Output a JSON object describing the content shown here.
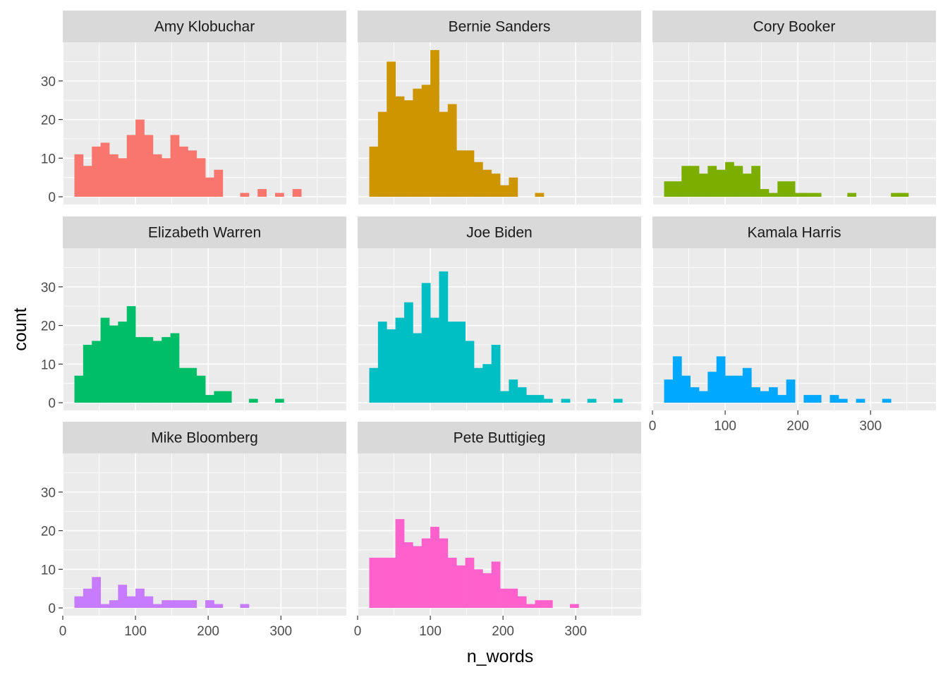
{
  "chart_data": {
    "type": "bar",
    "xlabel": "n_words",
    "ylabel": "count",
    "xlim": [
      0,
      390
    ],
    "ylim": [
      -2,
      40
    ],
    "x_ticks": [
      0,
      100,
      200,
      300
    ],
    "y_ticks": [
      0,
      10,
      20,
      30
    ],
    "bin_start": 16,
    "bin_width": 12,
    "grid": true,
    "facets": [
      {
        "name": "Amy Klobuchar",
        "color": "#F8766D",
        "values": [
          11,
          8,
          13,
          14,
          11,
          10,
          16,
          20,
          16,
          11,
          10,
          16,
          13,
          12,
          10,
          5,
          7,
          0,
          0,
          1,
          0,
          2,
          0,
          1,
          0,
          2,
          0,
          0,
          0,
          0,
          0,
          0
        ]
      },
      {
        "name": "Bernie Sanders",
        "color": "#CD9600",
        "values": [
          13,
          22,
          35,
          26,
          25,
          28,
          29,
          38,
          22,
          24,
          12,
          12,
          9,
          7,
          6,
          3,
          5,
          0,
          0,
          1,
          0,
          0,
          0,
          0,
          0,
          0,
          0,
          0,
          0,
          0,
          0,
          0
        ]
      },
      {
        "name": "Cory Booker",
        "color": "#7CAE00",
        "values": [
          4,
          4,
          8,
          8,
          6,
          8,
          7,
          9,
          8,
          6,
          8,
          2,
          1,
          4,
          4,
          1,
          1,
          1,
          0,
          0,
          0,
          1,
          0,
          0,
          0,
          0,
          1,
          1,
          0,
          0,
          0,
          0
        ]
      },
      {
        "name": "Elizabeth Warren",
        "color": "#00BE67",
        "values": [
          7,
          15,
          16,
          22,
          20,
          21,
          25,
          17,
          17,
          16,
          17,
          18,
          9,
          9,
          7,
          2,
          3,
          3,
          0,
          0,
          1,
          0,
          0,
          1,
          0,
          0,
          0,
          0,
          0,
          0,
          0,
          0
        ]
      },
      {
        "name": "Joe Biden",
        "color": "#00BFC4",
        "values": [
          9,
          21,
          19,
          22,
          26,
          18,
          31,
          22,
          34,
          21,
          21,
          16,
          9,
          10,
          15,
          3,
          6,
          4,
          2,
          2,
          1,
          0,
          1,
          0,
          0,
          1,
          0,
          0,
          1,
          0,
          0,
          0
        ]
      },
      {
        "name": "Kamala Harris",
        "color": "#00A9FF",
        "values": [
          6,
          12,
          7,
          4,
          3,
          8,
          12,
          7,
          7,
          9,
          4,
          3,
          4,
          2,
          6,
          0,
          2,
          2,
          0,
          2,
          1,
          0,
          1,
          0,
          0,
          1,
          0,
          0,
          0,
          0,
          0,
          0
        ]
      },
      {
        "name": "Mike Bloomberg",
        "color": "#C77CFF",
        "values": [
          3,
          5,
          8,
          1,
          2,
          6,
          3,
          5,
          3,
          1,
          2,
          2,
          2,
          2,
          0,
          2,
          1,
          0,
          0,
          1,
          0,
          0,
          0,
          0,
          0,
          0,
          0,
          0,
          0,
          0,
          0,
          0
        ]
      },
      {
        "name": "Pete Buttigieg",
        "color": "#FF61CC",
        "values": [
          13,
          13,
          13,
          23,
          17,
          16,
          18,
          21,
          18,
          13,
          11,
          13,
          10,
          9,
          12,
          5,
          5,
          3,
          1,
          2,
          2,
          0,
          0,
          1,
          0,
          0,
          0,
          0,
          0,
          0,
          0,
          0
        ]
      }
    ]
  }
}
